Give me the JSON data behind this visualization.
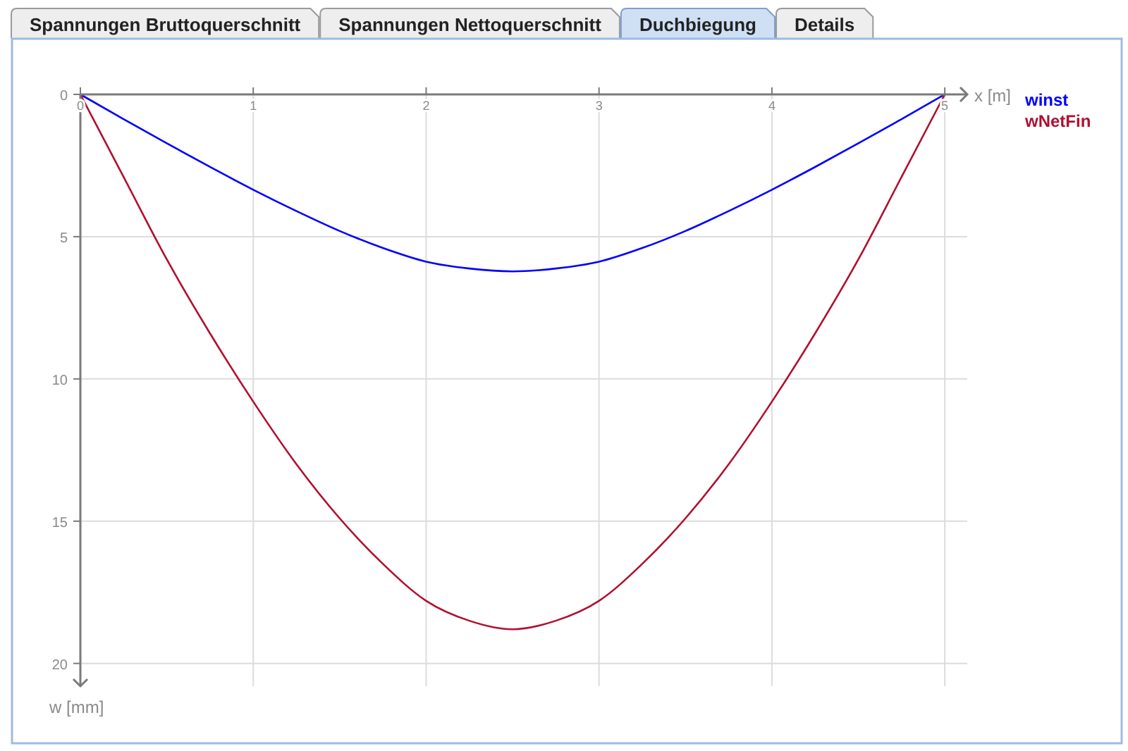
{
  "chart_data": {
    "type": "line",
    "annotations": [
      "Spannungen Bruttoquerschnitt",
      "Spannungen Nettoquerschnitt",
      "Duchbiegung",
      "Details"
    ],
    "xlabel": "x [m]",
    "ylabel": "w [mm]",
    "x": [
      0,
      0.25,
      0.5,
      0.75,
      1,
      1.25,
      1.5,
      1.75,
      2,
      2.25,
      2.5,
      2.75,
      3,
      3.25,
      3.5,
      3.75,
      4,
      4.25,
      4.5,
      4.75,
      5
    ],
    "series": [
      {
        "name": "winst",
        "color": "#0000ff",
        "values": [
          0,
          0.87,
          1.72,
          2.55,
          3.35,
          4.1,
          4.8,
          5.4,
          5.88,
          6.12,
          6.22,
          6.12,
          5.88,
          5.4,
          4.8,
          4.1,
          3.35,
          2.55,
          1.72,
          0.87,
          0
        ]
      },
      {
        "name": "wNetFin",
        "color": "#b01030",
        "values": [
          0,
          2.9,
          5.8,
          8.4,
          10.8,
          13.0,
          14.9,
          16.5,
          17.8,
          18.5,
          18.8,
          18.5,
          17.8,
          16.5,
          14.9,
          13.0,
          10.8,
          8.4,
          5.8,
          2.9,
          0
        ]
      }
    ],
    "xlim": [
      0,
      5.13
    ],
    "ylim": [
      20.8,
      0
    ],
    "xticks": [
      0,
      1,
      2,
      3,
      4,
      5
    ],
    "yticks": [
      0,
      5,
      10,
      15,
      20
    ],
    "grid": true,
    "legend": "right"
  }
}
